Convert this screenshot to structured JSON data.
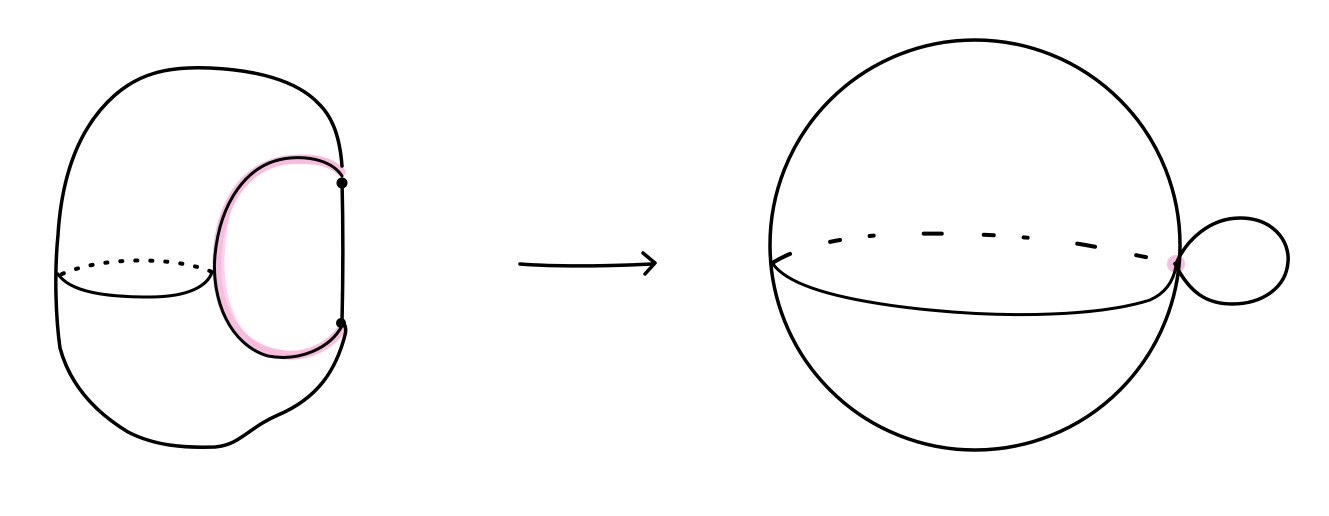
{
  "colors": {
    "background": "#ffffff",
    "ink": "#000000",
    "highlight": "#f9b6dc"
  },
  "figure": {
    "left_surface": {
      "description_icon": "pinched-torus-icon",
      "has_equator": true,
      "equator_back_dotted": true,
      "highlighted_arc": "collapsing-arc",
      "marked_points": 2
    },
    "map_arrow": {
      "direction": "right"
    },
    "right_surface": {
      "description_icon": "sphere-with-loop-icon",
      "has_equator": true,
      "equator_back_dotted": true,
      "highlighted_point": "wedge-point",
      "attached_loop": true
    }
  }
}
